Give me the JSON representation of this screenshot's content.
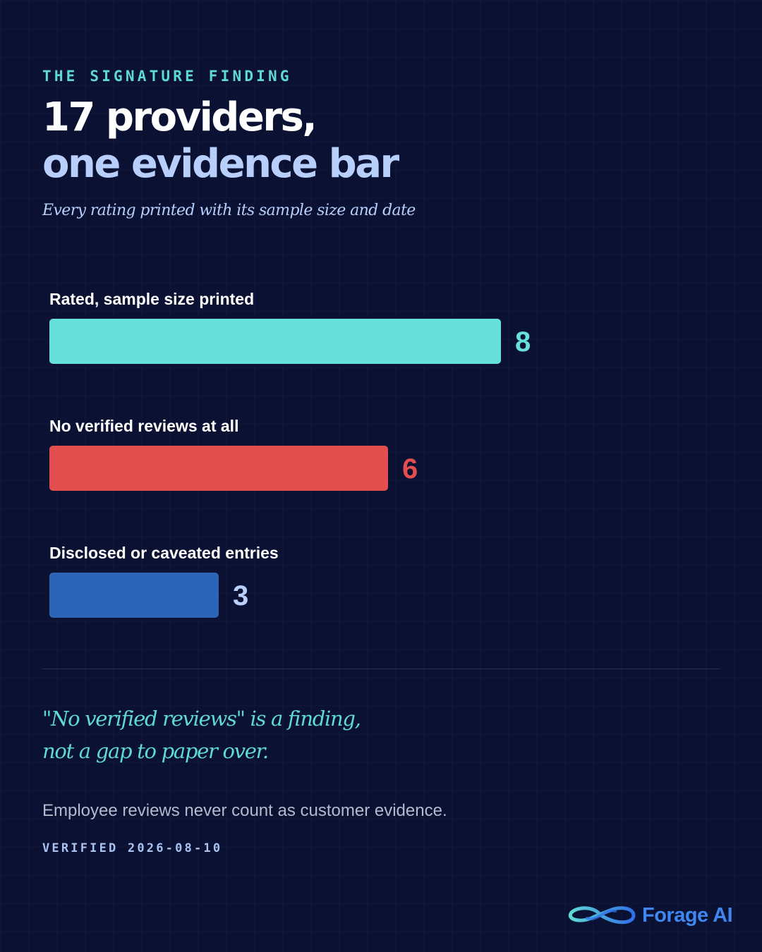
{
  "header": {
    "eyebrow": "THE SIGNATURE FINDING",
    "headline_line1": "17 providers,",
    "headline_line2": "one evidence bar",
    "subtitle": "Every rating printed with its sample size and date"
  },
  "chart_data": {
    "type": "bar",
    "orientation": "horizontal",
    "categories": [
      "Rated, sample size printed",
      "No verified reviews at all",
      "Disclosed or caveated entries"
    ],
    "values": [
      8,
      6,
      3
    ],
    "colors": [
      "#67e0da",
      "#e34f4f",
      "#2c64b8"
    ],
    "label_colors": [
      "#67e0da",
      "#e34f4f",
      "#b8cffc"
    ],
    "xlim": [
      0,
      8
    ],
    "grid": false,
    "legend": "none"
  },
  "quote": {
    "line1": "\"No verified reviews\" is a finding,",
    "line2": "not a gap to paper over."
  },
  "footnote": "Employee reviews never count as customer evidence.",
  "verified": "VERIFIED 2026-08-10",
  "brand": {
    "name": "Forage AI",
    "logo_icon": "infinity-icon",
    "color": "#3f86f0"
  }
}
